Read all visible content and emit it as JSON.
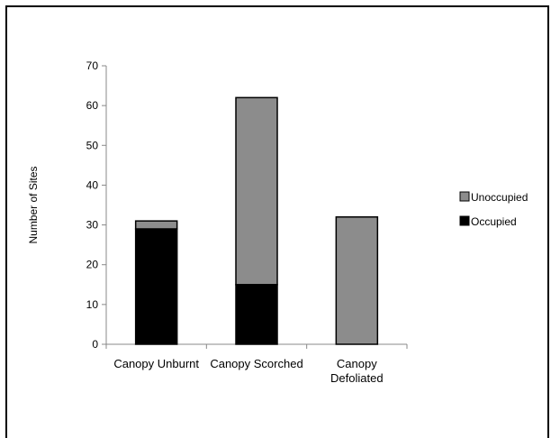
{
  "chart_data": {
    "type": "bar",
    "stacked": true,
    "categories": [
      [
        "Canopy Unburnt"
      ],
      [
        "Canopy Scorched"
      ],
      [
        "Canopy",
        "Defoliated"
      ]
    ],
    "series": [
      {
        "name": "Occupied",
        "values": [
          29,
          15,
          0
        ],
        "color": "#000000"
      },
      {
        "name": "Unoccupied",
        "values": [
          2,
          47,
          32
        ],
        "color": "#8c8c8c"
      }
    ],
    "title": "",
    "xlabel": "",
    "ylabel": "Number of Sites",
    "ylim": [
      0,
      70
    ],
    "yticks": [
      0,
      10,
      20,
      30,
      40,
      50,
      60,
      70
    ],
    "grid": false,
    "legend": {
      "placement": "right",
      "order": [
        "Unoccupied",
        "Occupied"
      ]
    }
  }
}
